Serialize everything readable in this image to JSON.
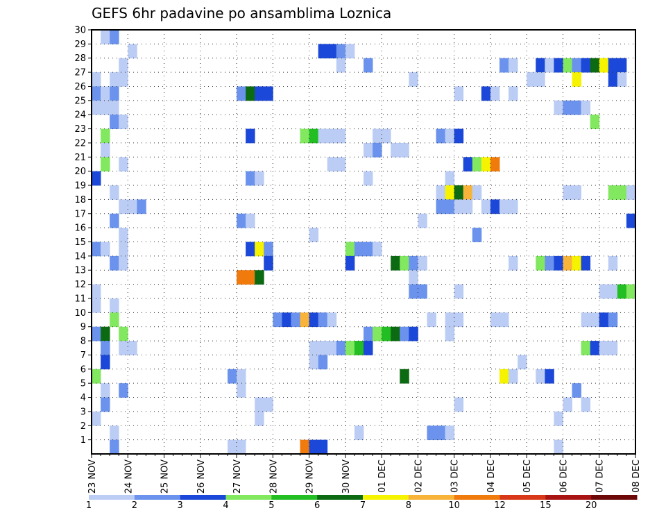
{
  "chart_data": {
    "type": "heatmap",
    "title": "GEFS 6hr padavine po ansamblima Loznica",
    "xlabel": "",
    "ylabel": "",
    "x_ticks": [
      "23 NOV",
      "24 NOV",
      "25 NOV",
      "26 NOV",
      "27 NOV",
      "28 NOV",
      "29 NOV",
      "30 NOV",
      "01 DEC",
      "02 DEC",
      "03 DEC",
      "04 DEC",
      "05 DEC",
      "06 DEC",
      "07 DEC",
      "08 DEC"
    ],
    "y_ticks": [
      1,
      2,
      3,
      4,
      5,
      6,
      7,
      8,
      9,
      10,
      11,
      12,
      13,
      14,
      15,
      16,
      17,
      18,
      19,
      20,
      21,
      22,
      23,
      24,
      25,
      26,
      27,
      28,
      29,
      30
    ],
    "x_unit": "6-hour step since 23 NOV 00Z",
    "xlim": [
      0,
      60
    ],
    "ylim": [
      0,
      30
    ],
    "grid": true,
    "colorbar": {
      "labels": [
        "1",
        "2",
        "3",
        "4",
        "5",
        "6",
        "7",
        "8",
        "10",
        "12",
        "15",
        "20"
      ],
      "colors": [
        "#bccdf5",
        "#6b93ee",
        "#1c48d9",
        "#82e860",
        "#23be23",
        "#0c6b12",
        "#f6f300",
        "#f8b43a",
        "#f07a0c",
        "#d83818",
        "#a81412",
        "#6c0808"
      ]
    },
    "cells": [
      [
        1,
        30,
        1
      ],
      [
        2,
        30,
        2
      ],
      [
        4,
        29,
        1
      ],
      [
        25,
        29,
        3
      ],
      [
        26,
        29,
        3
      ],
      [
        27,
        29,
        2
      ],
      [
        28,
        29,
        1
      ],
      [
        3,
        28,
        1
      ],
      [
        27,
        28,
        1
      ],
      [
        30,
        28,
        2
      ],
      [
        45,
        28,
        2
      ],
      [
        46,
        28,
        1
      ],
      [
        49,
        28,
        3
      ],
      [
        50,
        28,
        1
      ],
      [
        51,
        28,
        3
      ],
      [
        52,
        28,
        4
      ],
      [
        53,
        28,
        2
      ],
      [
        54,
        28,
        3
      ],
      [
        55,
        28,
        6
      ],
      [
        56,
        28,
        7
      ],
      [
        57,
        28,
        3
      ],
      [
        58,
        28,
        3
      ],
      [
        0,
        27,
        1
      ],
      [
        2,
        27,
        1
      ],
      [
        3,
        27,
        1
      ],
      [
        35,
        27,
        1
      ],
      [
        48,
        27,
        1
      ],
      [
        49,
        27,
        1
      ],
      [
        53,
        27,
        7
      ],
      [
        57,
        27,
        3
      ],
      [
        58,
        27,
        1
      ],
      [
        0,
        26,
        2
      ],
      [
        1,
        26,
        1
      ],
      [
        2,
        26,
        2
      ],
      [
        16,
        26,
        2
      ],
      [
        17,
        26,
        6
      ],
      [
        18,
        26,
        3
      ],
      [
        19,
        26,
        3
      ],
      [
        40,
        26,
        1
      ],
      [
        43,
        26,
        3
      ],
      [
        44,
        26,
        1
      ],
      [
        46,
        26,
        1
      ],
      [
        0,
        25,
        1
      ],
      [
        1,
        25,
        1
      ],
      [
        2,
        25,
        1
      ],
      [
        51,
        25,
        1
      ],
      [
        52,
        25,
        2
      ],
      [
        53,
        25,
        2
      ],
      [
        54,
        25,
        1
      ],
      [
        2,
        24,
        2
      ],
      [
        3,
        24,
        1
      ],
      [
        55,
        24,
        4
      ],
      [
        1,
        23,
        4
      ],
      [
        17,
        23,
        3
      ],
      [
        23,
        23,
        4
      ],
      [
        24,
        23,
        5
      ],
      [
        25,
        23,
        1
      ],
      [
        26,
        23,
        1
      ],
      [
        27,
        23,
        1
      ],
      [
        31,
        23,
        1
      ],
      [
        32,
        23,
        1
      ],
      [
        38,
        23,
        2
      ],
      [
        39,
        23,
        1
      ],
      [
        40,
        23,
        3
      ],
      [
        1,
        22,
        1
      ],
      [
        30,
        22,
        1
      ],
      [
        31,
        22,
        2
      ],
      [
        33,
        22,
        1
      ],
      [
        34,
        22,
        1
      ],
      [
        1,
        21,
        4
      ],
      [
        3,
        21,
        1
      ],
      [
        26,
        21,
        1
      ],
      [
        27,
        21,
        1
      ],
      [
        41,
        21,
        3
      ],
      [
        42,
        21,
        4
      ],
      [
        43,
        21,
        7
      ],
      [
        44,
        21,
        9
      ],
      [
        0,
        20,
        3
      ],
      [
        17,
        20,
        2
      ],
      [
        18,
        20,
        1
      ],
      [
        30,
        20,
        1
      ],
      [
        39,
        20,
        1
      ],
      [
        2,
        19,
        1
      ],
      [
        38,
        19,
        1
      ],
      [
        39,
        19,
        7
      ],
      [
        40,
        19,
        6
      ],
      [
        41,
        19,
        8
      ],
      [
        42,
        19,
        1
      ],
      [
        52,
        19,
        1
      ],
      [
        53,
        19,
        1
      ],
      [
        57,
        19,
        4
      ],
      [
        58,
        19,
        4
      ],
      [
        59,
        19,
        1
      ],
      [
        3,
        18,
        1
      ],
      [
        4,
        18,
        1
      ],
      [
        5,
        18,
        2
      ],
      [
        38,
        18,
        2
      ],
      [
        39,
        18,
        2
      ],
      [
        40,
        18,
        1
      ],
      [
        41,
        18,
        1
      ],
      [
        43,
        18,
        1
      ],
      [
        44,
        18,
        3
      ],
      [
        45,
        18,
        1
      ],
      [
        46,
        18,
        1
      ],
      [
        2,
        17,
        2
      ],
      [
        16,
        17,
        2
      ],
      [
        17,
        17,
        1
      ],
      [
        36,
        17,
        1
      ],
      [
        59,
        17,
        3
      ],
      [
        3,
        16,
        1
      ],
      [
        24,
        16,
        1
      ],
      [
        42,
        16,
        2
      ],
      [
        0,
        15,
        2
      ],
      [
        1,
        15,
        1
      ],
      [
        3,
        15,
        1
      ],
      [
        17,
        15,
        3
      ],
      [
        18,
        15,
        7
      ],
      [
        19,
        15,
        2
      ],
      [
        28,
        15,
        4
      ],
      [
        29,
        15,
        2
      ],
      [
        30,
        15,
        2
      ],
      [
        31,
        15,
        1
      ],
      [
        2,
        14,
        2
      ],
      [
        3,
        14,
        1
      ],
      [
        19,
        14,
        3
      ],
      [
        28,
        14,
        3
      ],
      [
        33,
        14,
        6
      ],
      [
        34,
        14,
        4
      ],
      [
        35,
        14,
        2
      ],
      [
        36,
        14,
        1
      ],
      [
        46,
        14,
        1
      ],
      [
        49,
        14,
        4
      ],
      [
        50,
        14,
        2
      ],
      [
        51,
        14,
        3
      ],
      [
        52,
        14,
        8
      ],
      [
        53,
        14,
        7
      ],
      [
        54,
        14,
        3
      ],
      [
        57,
        14,
        1
      ],
      [
        16,
        13,
        9
      ],
      [
        17,
        13,
        9
      ],
      [
        18,
        13,
        6
      ],
      [
        35,
        13,
        1
      ],
      [
        0,
        12,
        1
      ],
      [
        35,
        12,
        2
      ],
      [
        36,
        12,
        2
      ],
      [
        40,
        12,
        1
      ],
      [
        56,
        12,
        1
      ],
      [
        57,
        12,
        1
      ],
      [
        58,
        12,
        5
      ],
      [
        59,
        12,
        4
      ],
      [
        0,
        11,
        1
      ],
      [
        2,
        11,
        1
      ],
      [
        2,
        10,
        4
      ],
      [
        20,
        10,
        2
      ],
      [
        21,
        10,
        3
      ],
      [
        22,
        10,
        2
      ],
      [
        23,
        10,
        8
      ],
      [
        24,
        10,
        3
      ],
      [
        25,
        10,
        2
      ],
      [
        26,
        10,
        1
      ],
      [
        37,
        10,
        1
      ],
      [
        39,
        10,
        1
      ],
      [
        40,
        10,
        1
      ],
      [
        44,
        10,
        1
      ],
      [
        45,
        10,
        1
      ],
      [
        54,
        10,
        1
      ],
      [
        55,
        10,
        1
      ],
      [
        56,
        10,
        3
      ],
      [
        57,
        10,
        2
      ],
      [
        0,
        9,
        2
      ],
      [
        1,
        9,
        6
      ],
      [
        3,
        9,
        4
      ],
      [
        30,
        9,
        2
      ],
      [
        31,
        9,
        4
      ],
      [
        32,
        9,
        5
      ],
      [
        33,
        9,
        6
      ],
      [
        34,
        9,
        2
      ],
      [
        35,
        9,
        3
      ],
      [
        39,
        9,
        1
      ],
      [
        1,
        8,
        2
      ],
      [
        3,
        8,
        1
      ],
      [
        4,
        8,
        1
      ],
      [
        24,
        8,
        1
      ],
      [
        25,
        8,
        1
      ],
      [
        26,
        8,
        1
      ],
      [
        27,
        8,
        2
      ],
      [
        28,
        8,
        4
      ],
      [
        29,
        8,
        5
      ],
      [
        30,
        8,
        3
      ],
      [
        54,
        8,
        4
      ],
      [
        55,
        8,
        3
      ],
      [
        56,
        8,
        1
      ],
      [
        57,
        8,
        1
      ],
      [
        1,
        7,
        3
      ],
      [
        24,
        7,
        1
      ],
      [
        25,
        7,
        2
      ],
      [
        47,
        7,
        1
      ],
      [
        0,
        6,
        4
      ],
      [
        15,
        6,
        2
      ],
      [
        16,
        6,
        1
      ],
      [
        34,
        6,
        6
      ],
      [
        45,
        6,
        7
      ],
      [
        46,
        6,
        1
      ],
      [
        49,
        6,
        1
      ],
      [
        50,
        6,
        3
      ],
      [
        1,
        5,
        1
      ],
      [
        3,
        5,
        2
      ],
      [
        16,
        5,
        1
      ],
      [
        53,
        5,
        2
      ],
      [
        1,
        4,
        2
      ],
      [
        18,
        4,
        1
      ],
      [
        19,
        4,
        1
      ],
      [
        40,
        4,
        1
      ],
      [
        52,
        4,
        1
      ],
      [
        54,
        4,
        1
      ],
      [
        0,
        3,
        1
      ],
      [
        18,
        3,
        1
      ],
      [
        51,
        3,
        1
      ],
      [
        2,
        2,
        1
      ],
      [
        29,
        2,
        1
      ],
      [
        37,
        2,
        2
      ],
      [
        38,
        2,
        2
      ],
      [
        39,
        2,
        1
      ],
      [
        2,
        1,
        2
      ],
      [
        15,
        1,
        1
      ],
      [
        16,
        1,
        1
      ],
      [
        23,
        1,
        9
      ],
      [
        24,
        1,
        3
      ],
      [
        25,
        1,
        3
      ],
      [
        51,
        1,
        1
      ]
    ]
  }
}
